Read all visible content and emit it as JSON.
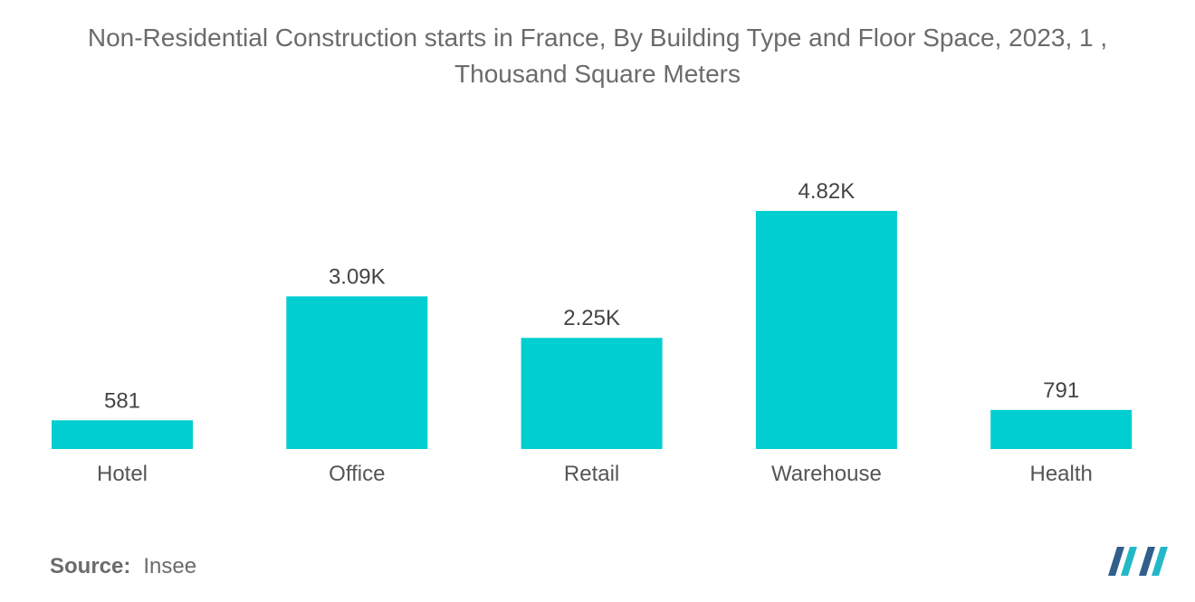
{
  "title_lines": [
    "Non-Residential Construction starts in France, By Building Type and Floor Space, 2023, 1 ,",
    "Thousand Square Meters"
  ],
  "source": {
    "label": "Source:",
    "value": "Insee"
  },
  "colors": {
    "bar": "#00CED1",
    "logo_dark": "#2f5f8a",
    "logo_light": "#23b8c6"
  },
  "chart_data": {
    "type": "bar",
    "title": "Non-Residential Construction starts in France, By Building Type and Floor Space, 2023, 1 , Thousand Square Meters",
    "categories": [
      "Hotel",
      "Office",
      "Retail",
      "Warehouse",
      "Health"
    ],
    "values": [
      581,
      3090,
      2250,
      4820,
      791
    ],
    "data_labels": [
      "581",
      "3.09K",
      "2.25K",
      "4.82K",
      "791"
    ],
    "xlabel": "",
    "ylabel": "",
    "ylim": [
      0,
      4820
    ],
    "grid": false,
    "legend": "none"
  }
}
